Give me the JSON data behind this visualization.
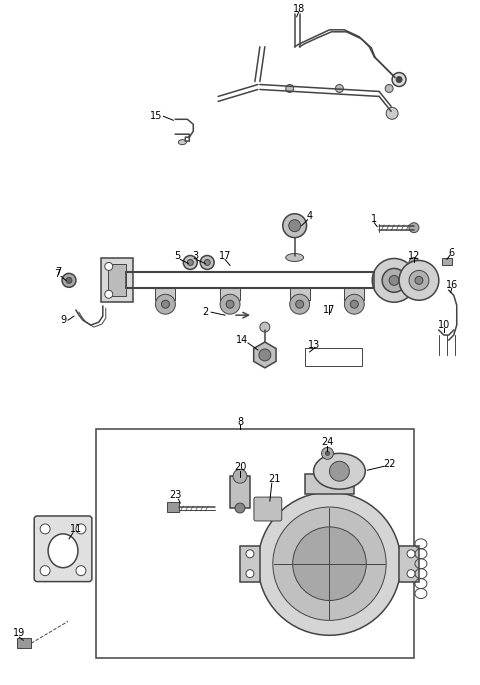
{
  "bg_color": "#ffffff",
  "line_color": "#444444",
  "fig_width": 4.8,
  "fig_height": 6.85,
  "dpi": 100,
  "font_size": 7
}
